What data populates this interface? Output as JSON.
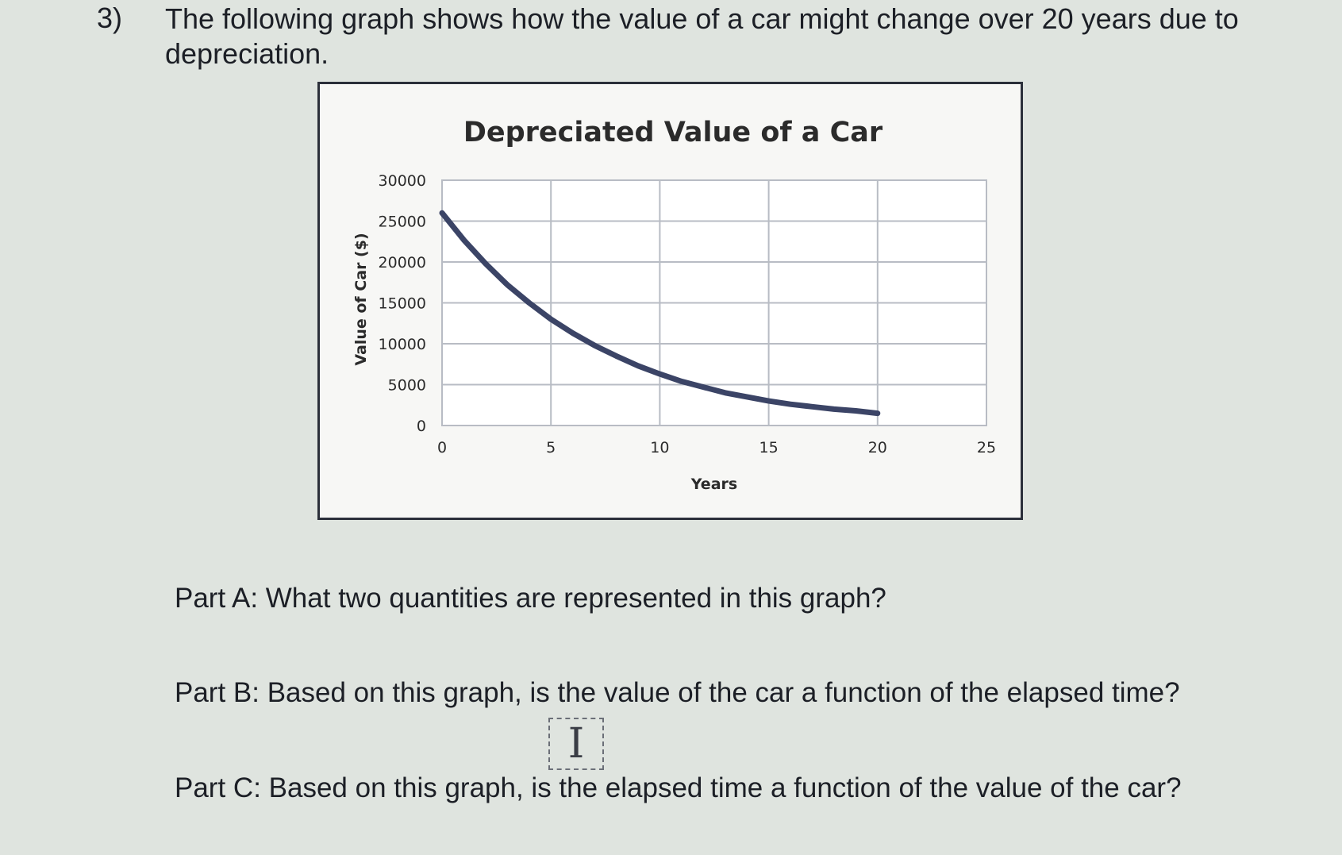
{
  "question": {
    "number": "3)",
    "text": "The following graph shows how the value of a car might change over 20 years due to depreciation."
  },
  "chart_data": {
    "type": "line",
    "title": "Depreciated Value of a Car",
    "xlabel": "Years",
    "ylabel": "Value of Car ($)",
    "xlim": [
      0,
      25
    ],
    "ylim": [
      0,
      30000
    ],
    "xticks": [
      0,
      5,
      10,
      15,
      20,
      25
    ],
    "yticks": [
      0,
      5000,
      10000,
      15000,
      20000,
      25000,
      30000
    ],
    "x_tick_labels": [
      "0",
      "5",
      "10",
      "15",
      "20",
      "25"
    ],
    "y_tick_labels": [
      "0",
      "5000",
      "10000",
      "15000",
      "20000",
      "25000",
      "30000"
    ],
    "grid": true,
    "series": [
      {
        "color": "#3b4466",
        "x": [
          0,
          1,
          2,
          3,
          4,
          5,
          6,
          7,
          8,
          9,
          10,
          11,
          12,
          13,
          14,
          15,
          16,
          17,
          18,
          19,
          20
        ],
        "y": [
          26000,
          22700,
          19800,
          17200,
          15000,
          13000,
          11300,
          9800,
          8500,
          7300,
          6300,
          5400,
          4700,
          4000,
          3500,
          3000,
          2600,
          2300,
          2000,
          1800,
          1500
        ]
      }
    ]
  },
  "parts": {
    "a": "Part A: What two quantities are represented in this graph?",
    "b": "Part B: Based on this graph, is the value of the car a function of the elapsed time?",
    "c": "Part C: Based on this graph, is the elapsed time a function of the value of the car?"
  },
  "cursor": {
    "icon": "text-cursor-icon",
    "glyph": "I"
  }
}
